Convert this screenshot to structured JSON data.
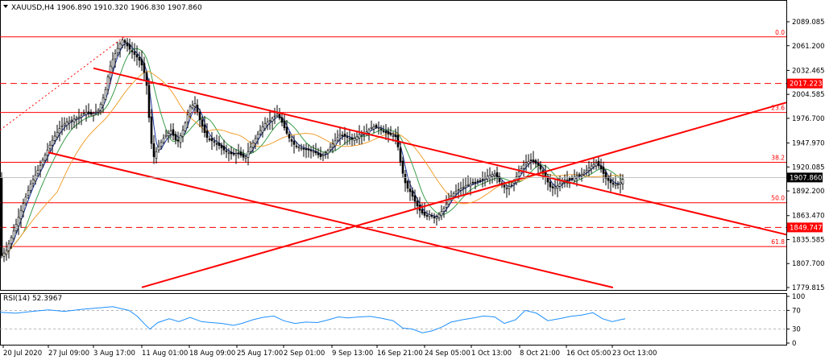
{
  "header": {
    "symbol_line": "XAUUSD,H4  1906.890 1910.320 1906.830 1907.860",
    "menu_icon": "triangle-down-icon"
  },
  "chart_data": [
    {
      "type": "candlestick",
      "title": "XAUUSD,H4  1906.890 1910.320 1906.830 1907.860",
      "ohlc": {
        "open": 1906.89,
        "high": 1910.32,
        "low": 1906.83,
        "close": 1907.86
      },
      "current_price": "1907.860",
      "ylim": [
        1770,
        2102
      ],
      "y_ticks": [
        "2089.085",
        "2061.200",
        "2032.465",
        "2004.585",
        "1976.700",
        "1947.970",
        "1920.085",
        "1892.200",
        "1863.470",
        "1835.585",
        "1807.700",
        "1779.815"
      ],
      "x_ticks": [
        "20 Jul 2020",
        "27 Jul 09:00",
        "3 Aug 17:00",
        "11 Aug 01:00",
        "18 Aug 09:00",
        "25 Aug 17:00",
        "2 Sep 01:00",
        "9 Sep 13:00",
        "16 Sep 21:00",
        "24 Sep 05:00",
        "1 Oct 13:00",
        "8 Oct 21:00",
        "16 Oct 05:00",
        "23 Oct 13:00"
      ],
      "price_path": [
        [
          0,
          1815
        ],
        [
          8,
          1823
        ],
        [
          18,
          1848
        ],
        [
          28,
          1875
        ],
        [
          38,
          1900
        ],
        [
          48,
          1918
        ],
        [
          58,
          1938
        ],
        [
          66,
          1953
        ],
        [
          74,
          1965
        ],
        [
          82,
          1972
        ],
        [
          90,
          1975
        ],
        [
          98,
          1978
        ],
        [
          106,
          1984
        ],
        [
          114,
          1981
        ],
        [
          122,
          1986
        ],
        [
          130,
          2005
        ],
        [
          136,
          2035
        ],
        [
          142,
          2050
        ],
        [
          148,
          2062
        ],
        [
          152,
          2068
        ],
        [
          156,
          2064
        ],
        [
          160,
          2058
        ],
        [
          166,
          2052
        ],
        [
          172,
          2046
        ],
        [
          178,
          2035
        ],
        [
          182,
          2015
        ],
        [
          186,
          1965
        ],
        [
          190,
          1930
        ],
        [
          196,
          1942
        ],
        [
          204,
          1955
        ],
        [
          212,
          1962
        ],
        [
          220,
          1948
        ],
        [
          228,
          1965
        ],
        [
          236,
          1990
        ],
        [
          242,
          1994
        ],
        [
          248,
          1975
        ],
        [
          256,
          1955
        ],
        [
          264,
          1950
        ],
        [
          272,
          1945
        ],
        [
          280,
          1938
        ],
        [
          288,
          1935
        ],
        [
          296,
          1936
        ],
        [
          304,
          1930
        ],
        [
          312,
          1945
        ],
        [
          320,
          1958
        ],
        [
          328,
          1970
        ],
        [
          336,
          1975
        ],
        [
          344,
          1982
        ],
        [
          350,
          1972
        ],
        [
          358,
          1955
        ],
        [
          366,
          1945
        ],
        [
          374,
          1942
        ],
        [
          382,
          1940
        ],
        [
          390,
          1938
        ],
        [
          398,
          1932
        ],
        [
          406,
          1938
        ],
        [
          414,
          1948
        ],
        [
          422,
          1958
        ],
        [
          430,
          1955
        ],
        [
          438,
          1952
        ],
        [
          446,
          1958
        ],
        [
          454,
          1960
        ],
        [
          462,
          1967
        ],
        [
          470,
          1966
        ],
        [
          478,
          1960
        ],
        [
          484,
          1958
        ],
        [
          492,
          1955
        ],
        [
          498,
          1920
        ],
        [
          504,
          1898
        ],
        [
          510,
          1890
        ],
        [
          516,
          1878
        ],
        [
          522,
          1868
        ],
        [
          528,
          1863
        ],
        [
          534,
          1865
        ],
        [
          540,
          1860
        ],
        [
          546,
          1866
        ],
        [
          552,
          1873
        ],
        [
          558,
          1884
        ],
        [
          566,
          1892
        ],
        [
          574,
          1896
        ],
        [
          582,
          1900
        ],
        [
          590,
          1902
        ],
        [
          598,
          1905
        ],
        [
          606,
          1910
        ],
        [
          614,
          1912
        ],
        [
          622,
          1900
        ],
        [
          628,
          1895
        ],
        [
          636,
          1900
        ],
        [
          644,
          1914
        ],
        [
          652,
          1925
        ],
        [
          660,
          1928
        ],
        [
          668,
          1922
        ],
        [
          676,
          1910
        ],
        [
          684,
          1895
        ],
        [
          692,
          1898
        ],
        [
          700,
          1905
        ],
        [
          708,
          1905
        ],
        [
          716,
          1910
        ],
        [
          724,
          1912
        ],
        [
          732,
          1920
        ],
        [
          740,
          1925
        ],
        [
          746,
          1918
        ],
        [
          752,
          1907
        ],
        [
          760,
          1900
        ],
        [
          768,
          1900
        ],
        [
          774,
          1907
        ]
      ],
      "moving_average_colors": [
        "#1f3aa0",
        "#3a9d4a",
        "#f0a030"
      ],
      "channel_lines": [
        {
          "from": [
            "3 Aug 17:00",
            2035
          ],
          "to": [
            "23 Oct 13:00",
            1890
          ],
          "color": "#ff0000"
        },
        {
          "from": [
            "27 Jul 09:00",
            1937
          ],
          "to": [
            "23 Oct 13:00",
            1780
          ],
          "color": "#ff0000"
        },
        {
          "from": [
            "11 Aug 01:00",
            1780
          ],
          "to": [
            "23 Oct 13:00",
            1937
          ],
          "color": "#ff0000"
        }
      ],
      "fibonacci": [
        {
          "label": "0.0",
          "price": 2071.5,
          "style": "solid"
        },
        {
          "label": "2017.223",
          "price": 2017.223,
          "style": "dashed",
          "boxed": true
        },
        {
          "label": "23.6",
          "price": 1983.5,
          "style": "solid"
        },
        {
          "label": "38.2",
          "price": 1925.5,
          "style": "solid"
        },
        {
          "label": "50.0",
          "price": 1878.5,
          "style": "solid"
        },
        {
          "label": "1849.747",
          "price": 1849.747,
          "style": "dashed",
          "boxed": true
        },
        {
          "label": "61.8",
          "price": 1827.5,
          "style": "solid"
        }
      ],
      "colors": {
        "candles": "#000000",
        "fib": "#ff0000",
        "grid": "#c0c0c0",
        "price_box": "#000000"
      }
    },
    {
      "type": "line",
      "title": "RSI(14) 52.3967",
      "ylim": [
        0,
        100
      ],
      "y_ticks": [
        "100",
        "70",
        "30",
        "0"
      ],
      "levels": [
        70,
        30
      ],
      "last_value": 52.3967,
      "rsi_path": [
        [
          0,
          66
        ],
        [
          20,
          64
        ],
        [
          40,
          68
        ],
        [
          60,
          71
        ],
        [
          80,
          68
        ],
        [
          100,
          72
        ],
        [
          120,
          75
        ],
        [
          140,
          78
        ],
        [
          150,
          74
        ],
        [
          160,
          70
        ],
        [
          170,
          58
        ],
        [
          180,
          40
        ],
        [
          186,
          30
        ],
        [
          196,
          44
        ],
        [
          210,
          52
        ],
        [
          222,
          46
        ],
        [
          236,
          55
        ],
        [
          250,
          46
        ],
        [
          262,
          44
        ],
        [
          276,
          42
        ],
        [
          290,
          38
        ],
        [
          300,
          42
        ],
        [
          314,
          50
        ],
        [
          326,
          55
        ],
        [
          340,
          58
        ],
        [
          352,
          48
        ],
        [
          366,
          42
        ],
        [
          380,
          45
        ],
        [
          394,
          44
        ],
        [
          408,
          50
        ],
        [
          420,
          56
        ],
        [
          432,
          54
        ],
        [
          446,
          56
        ],
        [
          460,
          57
        ],
        [
          474,
          53
        ],
        [
          488,
          48
        ],
        [
          500,
          32
        ],
        [
          512,
          30
        ],
        [
          524,
          22
        ],
        [
          536,
          26
        ],
        [
          548,
          34
        ],
        [
          560,
          45
        ],
        [
          574,
          50
        ],
        [
          588,
          54
        ],
        [
          600,
          58
        ],
        [
          614,
          56
        ],
        [
          626,
          42
        ],
        [
          640,
          50
        ],
        [
          652,
          70
        ],
        [
          666,
          64
        ],
        [
          680,
          48
        ],
        [
          694,
          52
        ],
        [
          708,
          57
        ],
        [
          722,
          60
        ],
        [
          736,
          65
        ],
        [
          748,
          52
        ],
        [
          760,
          46
        ],
        [
          770,
          50
        ],
        [
          776,
          52
        ]
      ],
      "color": "#1e90ff"
    }
  ]
}
